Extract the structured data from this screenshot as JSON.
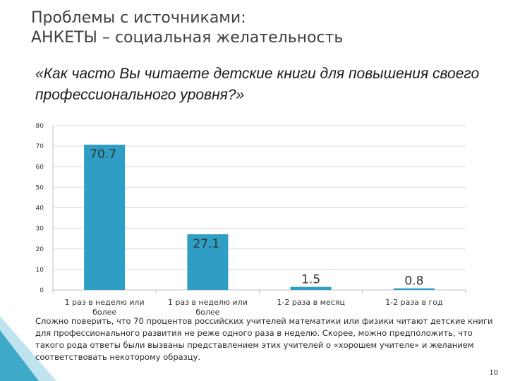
{
  "slide": {
    "title_line1": "Проблемы с источниками:",
    "title_line2": "АНКЕТЫ – социальная желательность",
    "question": "«Как часто Вы читаете детские книги для повышения своего профессионального уровня?»",
    "note": "Сложно поверить, что 70 процентов российских учителей математики или физики читают детские книги для профессионального развития не реже одного раза в неделю. Скорее, можно предположить, что такого рода ответы были вызваны представлением этих учителей о «хорошем учителе» и желанием соответствовать некоторому образцу.",
    "page_number": "10"
  },
  "chart_data": {
    "type": "bar",
    "categories": [
      "1 раз в неделю или более",
      "1 раз в неделю или более",
      "1-2 раза в месяц",
      "1-2 раза в год"
    ],
    "values": [
      70.7,
      27.1,
      1.5,
      0.8
    ],
    "value_labels": [
      "70.7",
      "27.1",
      "1.5",
      "0.8"
    ],
    "title": "",
    "xlabel": "",
    "ylabel": "",
    "ylim": [
      0,
      80
    ],
    "yticks": [
      "0",
      "10",
      "20",
      "30",
      "40",
      "50",
      "60",
      "70",
      "80"
    ],
    "grid": true,
    "bar_color": "#2e9ec4",
    "grid_color": "#d9d9d9"
  },
  "colors": {
    "deco_teal": "#3fa9c9",
    "deco_light": "#bfe3ef"
  }
}
